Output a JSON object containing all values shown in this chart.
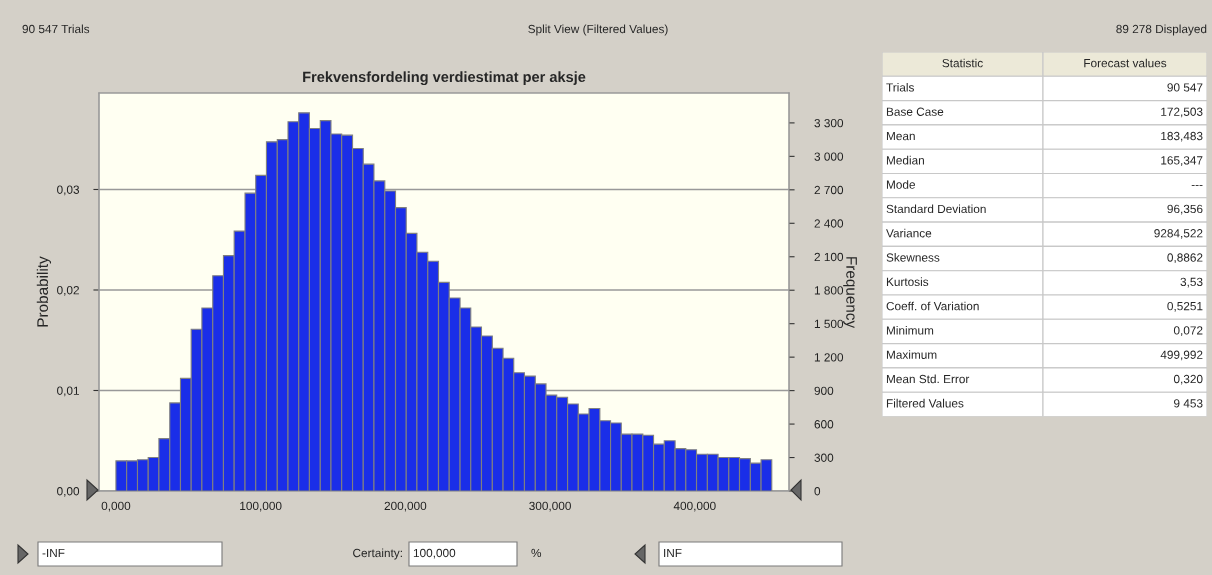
{
  "chart_data": [
    {
      "type": "histogram",
      "title": "Frekvensfordeling verdiestimat per aksje",
      "ylabel": "Probability",
      "y2label": "Frequency",
      "bins": [
        0,
        7.4,
        14.9,
        22.3,
        29.7,
        37.2,
        44.6,
        52.0,
        59.4,
        66.9,
        74.3,
        81.7,
        89.2,
        96.6,
        104.0,
        111.5,
        118.9,
        126.3,
        133.7,
        141.2,
        148.6,
        156.0,
        163.5,
        170.9,
        178.3,
        185.8,
        193.2,
        200.6,
        208.0,
        215.5,
        222.9,
        230.3,
        237.8,
        245.2,
        252.6,
        260.1,
        267.5,
        274.9,
        282.3,
        289.8,
        297.2,
        304.6,
        312.1,
        319.5,
        326.9,
        334.4,
        341.8,
        349.2,
        356.6,
        364.1,
        371.5,
        378.9,
        386.4,
        393.8,
        401.2,
        408.7,
        416.1,
        423.5,
        430.9,
        438.4,
        445.8,
        453.2
      ],
      "series": [
        {
          "color": "#1a2ee8",
          "axis": "y2",
          "values": [
            270,
            270,
            280,
            300,
            470,
            790,
            1010,
            1450,
            1640,
            1930,
            2110,
            2330,
            2670,
            2830,
            3130,
            3150,
            3310,
            3390,
            3250,
            3320,
            3200,
            3190,
            3070,
            2930,
            2780,
            2690,
            2540,
            2310,
            2140,
            2060,
            1870,
            1730,
            1640,
            1470,
            1390,
            1280,
            1190,
            1060,
            1030,
            960,
            860,
            840,
            780,
            690,
            740,
            630,
            610,
            510,
            510,
            500,
            420,
            450,
            380,
            370,
            330,
            330,
            300,
            300,
            290,
            250,
            280
          ]
        }
      ],
      "xlim": [
        -11.7,
        465.1
      ],
      "xticks": [
        {
          "value": 0,
          "label": "0,000"
        },
        {
          "value": 100,
          "label": "100,000"
        },
        {
          "value": 200,
          "label": "200,000"
        },
        {
          "value": 300,
          "label": "300,000"
        },
        {
          "value": 400,
          "label": "400,000"
        }
      ],
      "ylim": [
        0,
        0.0396
      ],
      "yticks": [
        {
          "value": 0,
          "label": "0,00"
        },
        {
          "value": 0.01,
          "label": "0,01"
        },
        {
          "value": 0.02,
          "label": "0,02"
        },
        {
          "value": 0.03,
          "label": "0,03"
        }
      ],
      "y2lim": [
        0,
        3568
      ],
      "y2ticks": [
        0,
        300,
        600,
        900,
        {
          "value": 1200,
          "label": "1 200"
        },
        {
          "value": 1500,
          "label": "1 500"
        },
        {
          "value": 1800,
          "label": "1 800"
        },
        {
          "value": 2100,
          "label": "2 100"
        },
        {
          "value": 2400,
          "label": "2 400"
        },
        {
          "value": 2700,
          "label": "2 700"
        },
        {
          "value": 3000,
          "label": "3 000"
        },
        {
          "value": 3300,
          "label": "3 300"
        }
      ],
      "grid": "y",
      "annotations": [
        "90 547 Trials",
        "Split View (Filtered Values)",
        "89 278 Displayed",
        "-INF",
        "Certainty:",
        "100,000",
        "%",
        "INF"
      ]
    },
    {
      "type": "other",
      "annotations": [
        "Statistic",
        "Forecast values",
        "Trials",
        "90 547",
        "Base Case",
        "172,503",
        "Mean",
        "183,483",
        "Median",
        "165,347",
        "Mode",
        "---",
        "Standard Deviation",
        "96,356",
        "Variance",
        "9284,522",
        "Skewness",
        "0,8862",
        "Kurtosis",
        "3,53",
        "Coeff. of Variation",
        "0,5251",
        "Minimum",
        "0,072",
        "Maximum",
        "499,992",
        "Mean Std. Error",
        "0,320",
        "Filtered Values",
        "9 453"
      ]
    }
  ]
}
